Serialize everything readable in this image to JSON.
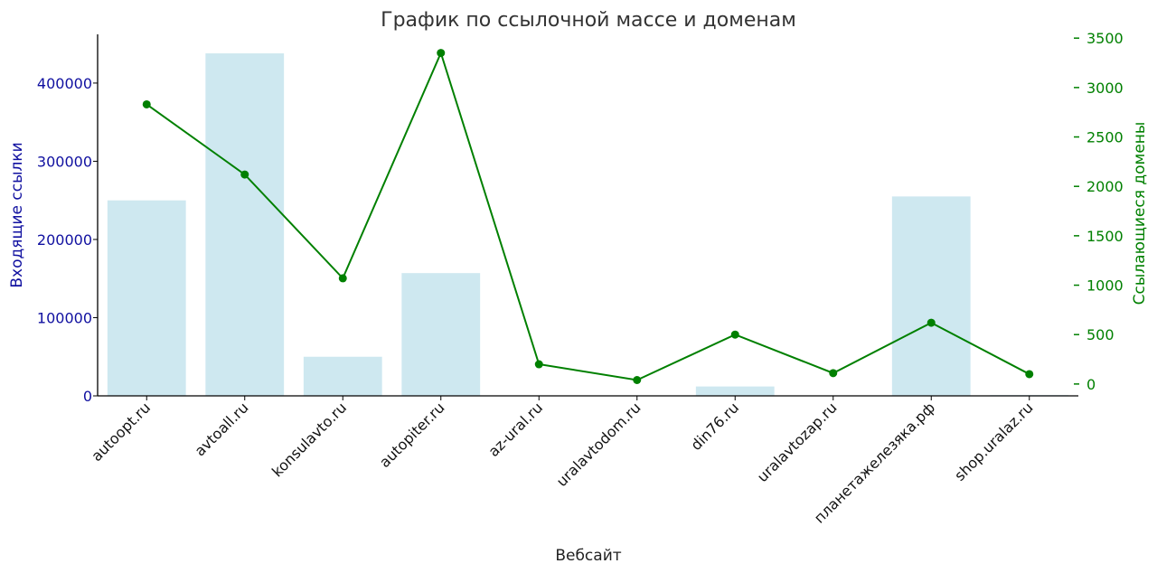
{
  "chart_data": {
    "type": "bar",
    "title": "График по ссылочной массе и доменам",
    "xlabel": "Вебсайт",
    "categories": [
      "autoopt.ru",
      "avtoall.ru",
      "konsulavto.ru",
      "autopiter.ru",
      "az-ural.ru",
      "uralavtodom.ru",
      "din76.ru",
      "uralavtozap.ru",
      "планетажелезяка.рф",
      "shop.uralaz.ru"
    ],
    "left_axis": {
      "label": "Входящие ссылки",
      "color": "#1010a0",
      "ylim": [
        0,
        460000
      ],
      "ticks": [
        0,
        100000,
        200000,
        300000,
        400000
      ]
    },
    "right_axis": {
      "label": "Ссылающиеся домены",
      "color": "#008000",
      "ylim": [
        -120,
        3520
      ],
      "ticks": [
        0,
        500,
        1000,
        1500,
        2000,
        2500,
        3000,
        3500
      ]
    },
    "series": [
      {
        "type": "bar",
        "axis": "left",
        "color": "#add8e6",
        "values": [
          250000,
          438000,
          50000,
          157000,
          0,
          0,
          12000,
          0,
          255000,
          1000
        ]
      },
      {
        "type": "line",
        "axis": "right",
        "color": "#008000",
        "marker": "circle",
        "values": [
          2830,
          2120,
          1070,
          3350,
          200,
          40,
          500,
          110,
          620,
          100
        ]
      }
    ],
    "legend": "none",
    "grid": false
  }
}
